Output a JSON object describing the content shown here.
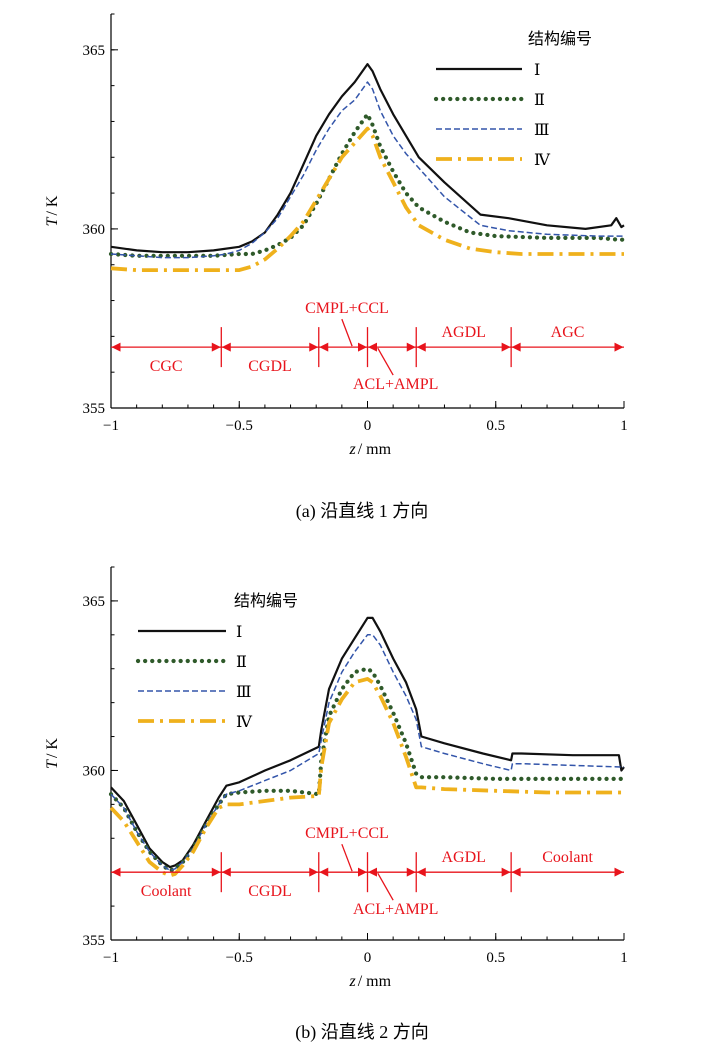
{
  "colors": {
    "I": "#111111",
    "II": "#2f5a2a",
    "III": "#3355aa",
    "IV": "#efb11c",
    "annotation": "#e8141c"
  },
  "legend_title": "结构编号",
  "chart_data": [
    {
      "type": "line",
      "caption": "(a)  沿直线 1 方向",
      "xlabel_var": "z",
      "xlabel_unit": "/ mm",
      "ylabel_var": "T",
      "ylabel_unit": "/ K",
      "xlim": [
        -1,
        1
      ],
      "ylim": [
        355,
        366
      ],
      "xticks": [
        -1,
        -0.5,
        0,
        0.5,
        1
      ],
      "xtick_labels": [
        "−1",
        "−0.5",
        "0",
        "0.5",
        "1"
      ],
      "yticks": [
        355,
        360,
        365
      ],
      "ytick_labels": [
        "355",
        "360",
        "365"
      ],
      "series": [
        {
          "name": "Ⅰ",
          "x": [
            -1,
            -0.9,
            -0.8,
            -0.7,
            -0.6,
            -0.5,
            -0.45,
            -0.4,
            -0.35,
            -0.3,
            -0.25,
            -0.2,
            -0.15,
            -0.1,
            -0.05,
            0,
            0.02,
            0.05,
            0.1,
            0.15,
            0.2,
            0.3,
            0.44,
            0.55,
            0.7,
            0.85,
            0.95,
            0.97,
            0.99,
            1
          ],
          "y": [
            359.5,
            359.4,
            359.35,
            359.35,
            359.4,
            359.5,
            359.65,
            359.9,
            360.4,
            361.0,
            361.8,
            362.6,
            363.2,
            363.7,
            364.1,
            364.6,
            364.4,
            363.9,
            363.2,
            362.6,
            362.0,
            361.3,
            360.4,
            360.3,
            360.1,
            360.0,
            360.1,
            360.3,
            360.05,
            360.1
          ]
        },
        {
          "name": "Ⅱ",
          "x": [
            -1,
            -0.9,
            -0.8,
            -0.7,
            -0.6,
            -0.5,
            -0.45,
            -0.4,
            -0.35,
            -0.3,
            -0.25,
            -0.2,
            -0.15,
            -0.1,
            -0.05,
            0,
            0.02,
            0.05,
            0.1,
            0.15,
            0.2,
            0.3,
            0.4,
            0.5,
            0.7,
            0.9,
            0.98,
            1
          ],
          "y": [
            359.3,
            359.25,
            359.25,
            359.25,
            359.25,
            359.3,
            359.3,
            359.4,
            359.55,
            359.75,
            360.1,
            360.7,
            361.4,
            362.1,
            362.7,
            363.2,
            362.9,
            362.3,
            361.6,
            361.0,
            360.6,
            360.2,
            359.9,
            359.8,
            359.75,
            359.75,
            359.7,
            359.7
          ]
        },
        {
          "name": "Ⅲ",
          "x": [
            -1,
            -0.9,
            -0.8,
            -0.7,
            -0.6,
            -0.55,
            -0.5,
            -0.45,
            -0.4,
            -0.35,
            -0.3,
            -0.25,
            -0.2,
            -0.15,
            -0.1,
            -0.05,
            0,
            0.02,
            0.05,
            0.1,
            0.15,
            0.2,
            0.3,
            0.44,
            0.55,
            0.7,
            0.9,
            1
          ],
          "y": [
            359.3,
            359.25,
            359.2,
            359.2,
            359.25,
            359.3,
            359.4,
            359.6,
            359.9,
            360.3,
            360.9,
            361.5,
            362.2,
            362.8,
            363.3,
            363.6,
            364.1,
            363.9,
            363.3,
            362.6,
            362.1,
            361.7,
            360.9,
            360.1,
            359.95,
            359.85,
            359.8,
            359.8
          ]
        },
        {
          "name": "Ⅳ",
          "x": [
            -1,
            -0.9,
            -0.8,
            -0.7,
            -0.6,
            -0.5,
            -0.45,
            -0.4,
            -0.35,
            -0.3,
            -0.25,
            -0.2,
            -0.15,
            -0.1,
            -0.05,
            0,
            0.02,
            0.05,
            0.1,
            0.15,
            0.2,
            0.3,
            0.4,
            0.5,
            0.6,
            0.8,
            1
          ],
          "y": [
            358.9,
            358.85,
            358.85,
            358.85,
            358.85,
            358.85,
            358.95,
            359.15,
            359.45,
            359.8,
            360.2,
            360.8,
            361.4,
            362.0,
            362.4,
            362.8,
            362.6,
            362.0,
            361.3,
            360.6,
            360.1,
            359.7,
            359.45,
            359.35,
            359.3,
            359.3,
            359.3
          ]
        }
      ],
      "regions": [
        {
          "label": "CGC",
          "from": -1,
          "to": -0.57
        },
        {
          "label": "CGDL",
          "from": -0.57,
          "to": -0.19
        },
        {
          "label": "CMPL+CCL",
          "from": -0.19,
          "to": 0
        },
        {
          "label": "ACL+AMPL",
          "from": 0,
          "to": 0.19
        },
        {
          "label": "AGDL",
          "from": 0.19,
          "to": 0.56
        },
        {
          "label": "AGC",
          "from": 0.56,
          "to": 1
        }
      ],
      "region_y": 356.7
    },
    {
      "type": "line",
      "caption": "(b)  沿直线 2 方向",
      "xlabel_var": "z",
      "xlabel_unit": "/ mm",
      "ylabel_var": "T",
      "ylabel_unit": "/ K",
      "xlim": [
        -1,
        1
      ],
      "ylim": [
        355,
        366
      ],
      "xticks": [
        -1,
        -0.5,
        0,
        0.5,
        1
      ],
      "xtick_labels": [
        "−1",
        "−0.5",
        "0",
        "0.5",
        "1"
      ],
      "yticks": [
        355,
        360,
        365
      ],
      "ytick_labels": [
        "355",
        "360",
        "365"
      ],
      "series": [
        {
          "name": "Ⅰ",
          "x": [
            -1,
            -0.95,
            -0.9,
            -0.85,
            -0.8,
            -0.77,
            -0.75,
            -0.72,
            -0.68,
            -0.63,
            -0.58,
            -0.55,
            -0.5,
            -0.4,
            -0.3,
            -0.19,
            -0.18,
            -0.15,
            -0.1,
            -0.05,
            0,
            0.02,
            0.05,
            0.1,
            0.15,
            0.19,
            0.21,
            0.3,
            0.45,
            0.56,
            0.565,
            0.6,
            0.8,
            0.98,
            0.99,
            1
          ],
          "y": [
            359.5,
            359.1,
            358.4,
            357.7,
            357.3,
            357.15,
            357.2,
            357.35,
            357.8,
            358.5,
            359.2,
            359.55,
            359.65,
            360.0,
            360.3,
            360.7,
            361.2,
            362.4,
            363.3,
            363.9,
            364.5,
            364.5,
            364.1,
            363.3,
            362.6,
            361.8,
            361.0,
            360.8,
            360.5,
            360.3,
            360.5,
            360.5,
            360.45,
            360.45,
            360.0,
            360.1
          ]
        },
        {
          "name": "Ⅱ",
          "x": [
            -1,
            -0.95,
            -0.9,
            -0.85,
            -0.8,
            -0.77,
            -0.75,
            -0.72,
            -0.68,
            -0.63,
            -0.58,
            -0.55,
            -0.5,
            -0.4,
            -0.3,
            -0.19,
            -0.18,
            -0.15,
            -0.1,
            -0.05,
            0,
            0.02,
            0.05,
            0.1,
            0.15,
            0.19,
            0.21,
            0.3,
            0.5,
            0.7,
            0.9,
            1
          ],
          "y": [
            359.3,
            358.9,
            358.2,
            357.6,
            357.2,
            357.05,
            357.1,
            357.3,
            357.7,
            358.4,
            359.0,
            359.3,
            359.35,
            359.4,
            359.4,
            359.3,
            360.3,
            361.6,
            362.4,
            362.9,
            363.0,
            362.9,
            362.5,
            361.7,
            360.8,
            359.9,
            359.8,
            359.8,
            359.75,
            359.75,
            359.75,
            359.75
          ]
        },
        {
          "name": "Ⅲ",
          "x": [
            -1,
            -0.95,
            -0.9,
            -0.85,
            -0.8,
            -0.77,
            -0.75,
            -0.72,
            -0.68,
            -0.63,
            -0.58,
            -0.55,
            -0.5,
            -0.4,
            -0.3,
            -0.19,
            -0.18,
            -0.15,
            -0.1,
            -0.05,
            0,
            0.02,
            0.05,
            0.1,
            0.15,
            0.19,
            0.21,
            0.3,
            0.45,
            0.56,
            0.565,
            0.6,
            0.8,
            1
          ],
          "y": [
            359.3,
            358.9,
            358.2,
            357.6,
            357.2,
            357.05,
            357.1,
            357.3,
            357.7,
            358.4,
            359.0,
            359.3,
            359.4,
            359.7,
            360.0,
            360.5,
            360.9,
            362.0,
            362.9,
            363.5,
            364.0,
            364.0,
            363.7,
            362.9,
            362.2,
            361.5,
            360.7,
            360.5,
            360.2,
            360.0,
            360.2,
            360.2,
            360.15,
            360.1
          ]
        },
        {
          "name": "Ⅳ",
          "x": [
            -1,
            -0.95,
            -0.9,
            -0.85,
            -0.8,
            -0.77,
            -0.75,
            -0.72,
            -0.68,
            -0.63,
            -0.58,
            -0.55,
            -0.5,
            -0.4,
            -0.3,
            -0.19,
            -0.18,
            -0.15,
            -0.1,
            -0.05,
            0,
            0.02,
            0.05,
            0.1,
            0.15,
            0.19,
            0.21,
            0.3,
            0.5,
            0.7,
            0.9,
            1
          ],
          "y": [
            358.9,
            358.5,
            357.9,
            357.3,
            357.0,
            356.9,
            356.95,
            357.2,
            357.6,
            358.3,
            358.9,
            359.0,
            359.0,
            359.1,
            359.2,
            359.25,
            360.1,
            361.4,
            362.1,
            362.6,
            362.7,
            362.6,
            362.2,
            361.4,
            360.4,
            359.5,
            359.5,
            359.45,
            359.4,
            359.35,
            359.35,
            359.35
          ]
        }
      ],
      "regions": [
        {
          "label": "Coolant",
          "from": -1,
          "to": -0.57
        },
        {
          "label": "CGDL",
          "from": -0.57,
          "to": -0.19
        },
        {
          "label": "CMPL+CCL",
          "from": -0.19,
          "to": 0
        },
        {
          "label": "ACL+AMPL",
          "from": 0,
          "to": 0.19
        },
        {
          "label": "AGDL",
          "from": 0.19,
          "to": 0.56
        },
        {
          "label": "Coolant",
          "from": 0.56,
          "to": 1
        }
      ],
      "region_y": 357.0
    }
  ]
}
